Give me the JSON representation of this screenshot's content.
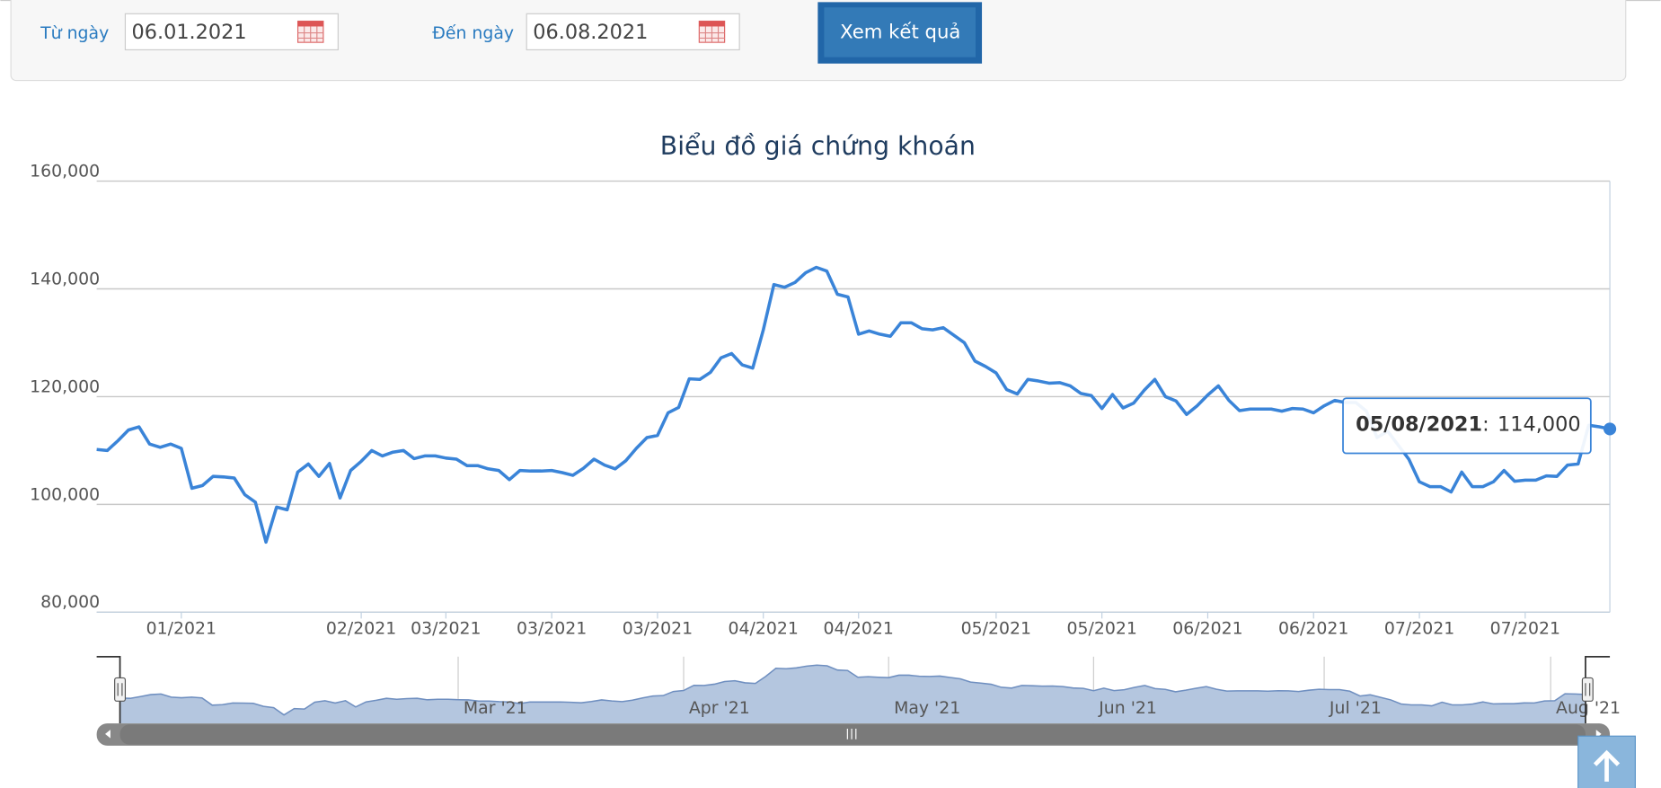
{
  "filter": {
    "from_label": "Từ ngày",
    "from_value": "06.01.2021",
    "to_label": "Đến ngày",
    "to_value": "06.08.2021",
    "button": "Xem kết quả"
  },
  "chart_data": {
    "type": "line",
    "title": "Biểu đồ giá chứng khoán",
    "color": "#3a84d8",
    "grid": true,
    "values": [
      110200,
      110000,
      111800,
      113800,
      114400,
      111200,
      110600,
      111200,
      110400,
      103000,
      103500,
      105200,
      105100,
      104900,
      101800,
      100400,
      93000,
      99500,
      99000,
      106000,
      107500,
      105200,
      107600,
      101200,
      106300,
      108000,
      110000,
      109000,
      109700,
      110000,
      108500,
      109000,
      109000,
      108600,
      108400,
      107200,
      107200,
      106600,
      106300,
      104600,
      106300,
      106200,
      106200,
      106300,
      105900,
      105400,
      106700,
      108400,
      107300,
      106600,
      108100,
      110400,
      112400,
      112800,
      117000,
      118000,
      123300,
      123200,
      124500,
      127200,
      128000,
      125900,
      125300,
      132400,
      140800,
      140300,
      141200,
      143000,
      144000,
      143300,
      139000,
      138500,
      131600,
      132200,
      131600,
      131200,
      133700,
      133700,
      132600,
      132400,
      132800,
      131400,
      130000,
      126600,
      125600,
      124400,
      121300,
      120500,
      123200,
      122900,
      122500,
      122600,
      122000,
      120600,
      120200,
      117800,
      120400,
      117900,
      118800,
      121200,
      123200,
      120000,
      119200,
      116700,
      118300,
      120300,
      122000,
      119300,
      117400,
      117700,
      117700,
      117700,
      117300,
      117800,
      117700,
      117000,
      118300,
      119300,
      118900,
      118900,
      117300,
      112400,
      113600,
      111000,
      108400,
      104200,
      103300,
      103300,
      102300,
      106000,
      103300,
      103300,
      104200,
      106300,
      104300,
      104500,
      104500,
      105300,
      105200,
      107300,
      107500,
      114700,
      114400,
      114000
    ],
    "xlim": [
      0,
      143
    ],
    "xticks": [
      {
        "value": 8,
        "label": "01/2021"
      },
      {
        "value": 25,
        "label": "02/2021"
      },
      {
        "value": 33,
        "label": "03/2021"
      },
      {
        "value": 43,
        "label": "03/2021"
      },
      {
        "value": 53,
        "label": "03/2021"
      },
      {
        "value": 63,
        "label": "04/2021"
      },
      {
        "value": 72,
        "label": "04/2021"
      },
      {
        "value": 85,
        "label": "05/2021"
      },
      {
        "value": 95,
        "label": "05/2021"
      },
      {
        "value": 105,
        "label": "06/2021"
      },
      {
        "value": 115,
        "label": "06/2021"
      },
      {
        "value": 125,
        "label": "07/2021"
      },
      {
        "value": 135,
        "label": "07/2021"
      }
    ],
    "ylim": [
      80000,
      160000
    ],
    "yticks": [
      {
        "value": 80000,
        "label": "80,000"
      },
      {
        "value": 100000,
        "label": "100,000"
      },
      {
        "value": 120000,
        "label": "120,000"
      },
      {
        "value": 140000,
        "label": "140,000"
      },
      {
        "value": 160000,
        "label": "160,000"
      }
    ],
    "tooltip": {
      "label": "05/08/2021",
      "separator": ":",
      "value_label": "114,000"
    },
    "navigator_xticks": [
      {
        "value": 33,
        "label": "Mar '21"
      },
      {
        "value": 55,
        "label": "Apr '21"
      },
      {
        "value": 75,
        "label": "May '21"
      },
      {
        "value": 95,
        "label": "Jun '21"
      },
      {
        "value": 117.5,
        "label": "Jul '21"
      },
      {
        "value": 139.6,
        "label": "Aug '21"
      }
    ]
  }
}
